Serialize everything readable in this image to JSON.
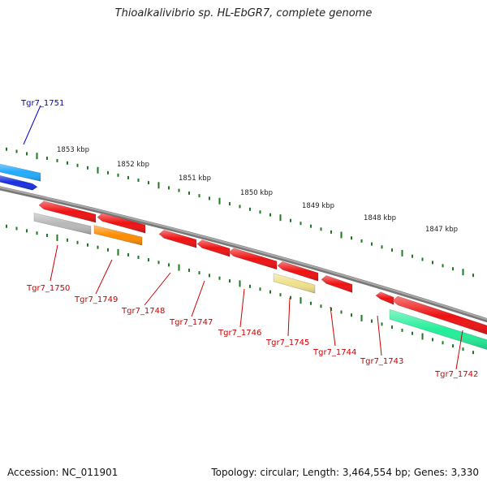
{
  "title": "Thioalkalivibrio sp. HL-EbGR7, complete genome",
  "footer": {
    "accession": "Accession: NC_011901",
    "summary": "Topology: circular; Length: 3,464,554 bp; Genes: 3,330"
  },
  "colors": {
    "backbone": "#888888",
    "tick": "#1e7a1e",
    "forward_label": "#0000cc",
    "reverse_label": "#cc0000"
  },
  "scale_labels": [
    "1853 kbp",
    "1852 kbp",
    "1851 kbp",
    "1850 kbp",
    "1849 kbp",
    "1848 kbp",
    "1847 kbp"
  ],
  "genes": [
    {
      "id": "Tgr7_1751",
      "strand": "forward",
      "color": "#22aaff",
      "label_color": "#0000cc"
    },
    {
      "id": "Tgr7_1750",
      "strand": "reverse",
      "color": "#b8b8b8",
      "label_color": "#cc0000"
    },
    {
      "id": "Tgr7_1749",
      "strand": "reverse",
      "color": "#ff8c00",
      "label_color": "#cc0000"
    },
    {
      "id": "Tgr7_1748",
      "strand": "reverse",
      "color": "#ee1111",
      "label_color": "#cc0000"
    },
    {
      "id": "Tgr7_1747",
      "strand": "reverse",
      "color": "#ee1111",
      "label_color": "#cc0000"
    },
    {
      "id": "Tgr7_1746",
      "strand": "reverse",
      "color": "#ee1111",
      "label_color": "#cc0000"
    },
    {
      "id": "Tgr7_1745",
      "strand": "reverse",
      "color": "#f0e08a",
      "label_color": "#cc0000"
    },
    {
      "id": "Tgr7_1744",
      "strand": "reverse",
      "color": "#ee1111",
      "label_color": "#cc0000"
    },
    {
      "id": "Tgr7_1743",
      "strand": "reverse",
      "color": "#ee1111",
      "label_color": "#cc0000"
    },
    {
      "id": "Tgr7_1742",
      "strand": "reverse",
      "color": "#22ee99",
      "label_color": "#cc0000"
    }
  ]
}
